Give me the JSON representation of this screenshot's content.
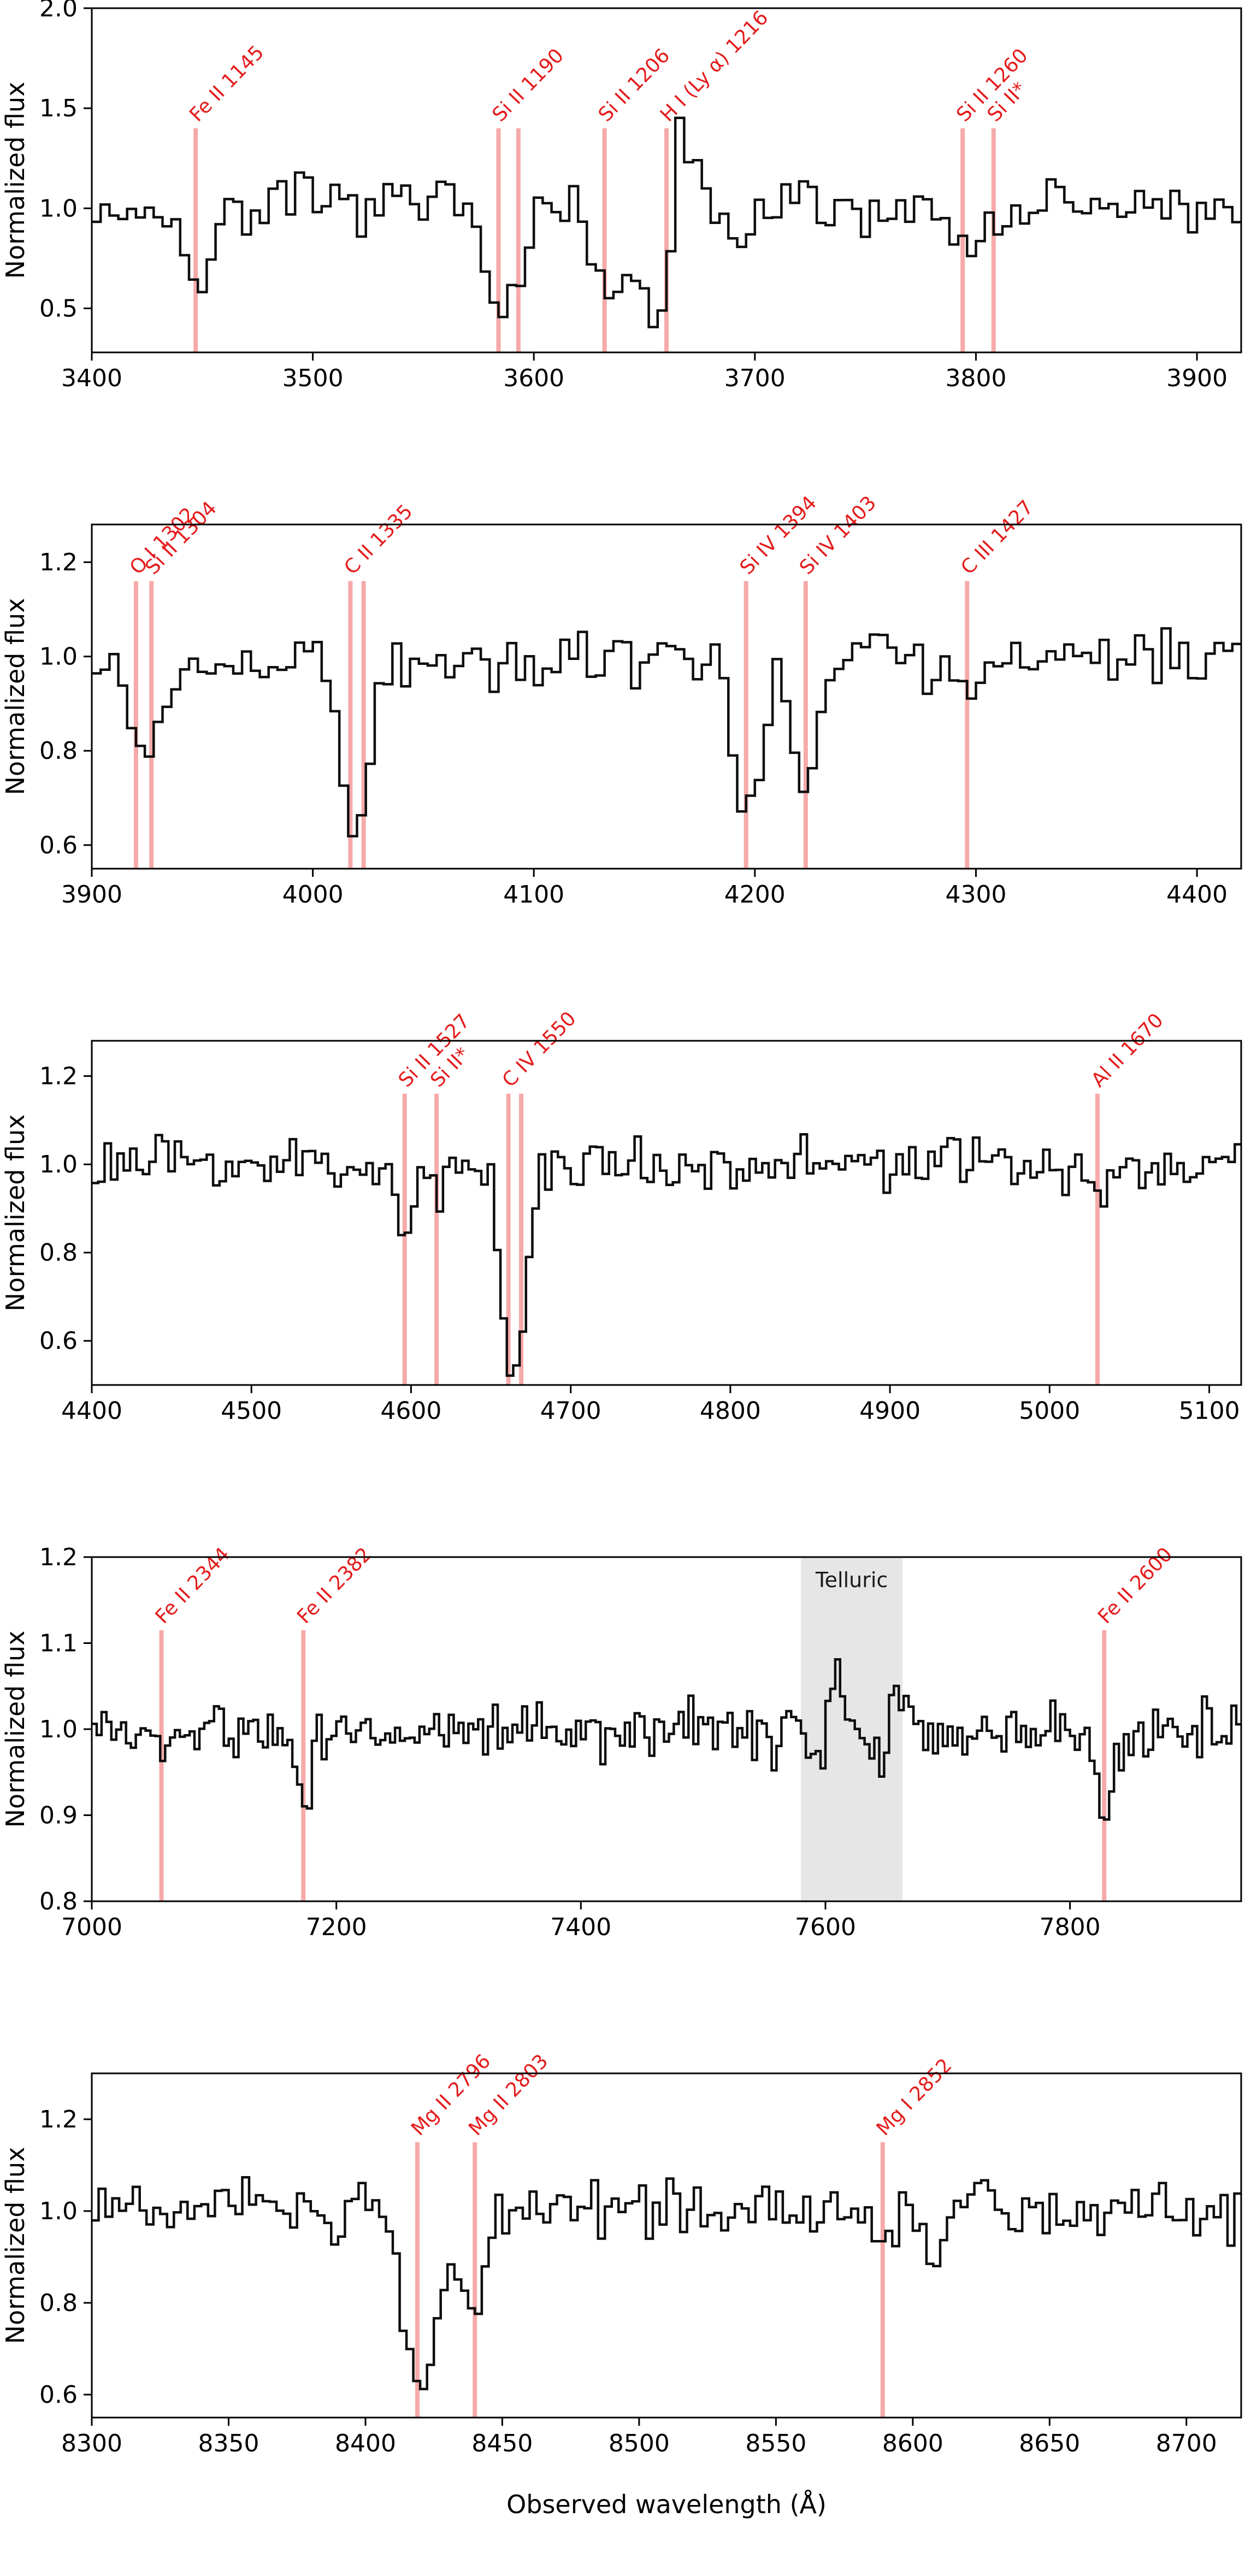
{
  "figure": {
    "xlabel": "Observed wavelength (Å)",
    "ylabel": "Normalized flux",
    "colors": {
      "spectrum": "#0d0d0d",
      "marker_line": "#f6a9a9",
      "label": "#e41b1b",
      "telluric_band": "#e6e6e6",
      "axis": "#000000",
      "background": "#ffffff"
    }
  },
  "chart_data": [
    {
      "type": "line",
      "panel": 1,
      "ylabel": "Normalized flux",
      "xlim": [
        3400,
        3920
      ],
      "ylim": [
        0.28,
        2.0
      ],
      "xticks": [
        {
          "v": 3400,
          "label": "3400"
        },
        {
          "v": 3500,
          "label": "3500"
        },
        {
          "v": 3600,
          "label": "3600"
        },
        {
          "v": 3700,
          "label": "3700"
        },
        {
          "v": 3800,
          "label": "3800"
        },
        {
          "v": 3900,
          "label": "3900"
        }
      ],
      "yticks": [
        {
          "v": 0.5,
          "label": "0.5"
        },
        {
          "v": 1.0,
          "label": "1.0"
        },
        {
          "v": 1.5,
          "label": "1.5"
        },
        {
          "v": 2.0,
          "label": "2.0"
        }
      ],
      "marker_top_flux": 1.4,
      "lines": [
        {
          "label": "Fe II 1145",
          "x": 3447
        },
        {
          "label": "Si II 1190",
          "x": 3584
        },
        {
          "label": "",
          "x": 3593
        },
        {
          "label": "Si II 1206",
          "x": 3632
        },
        {
          "label": "H I (Ly α) 1216",
          "x": 3660
        },
        {
          "label": "Si II 1260",
          "x": 3794
        },
        {
          "label": "Si II*",
          "x": 3808
        }
      ],
      "features": [
        {
          "x": 3447,
          "depth": 0.45,
          "width": 5
        },
        {
          "x": 3584,
          "depth": 0.4,
          "width": 6
        },
        {
          "x": 3593,
          "depth": 0.28,
          "width": 5
        },
        {
          "x": 3632,
          "depth": 0.38,
          "width": 6
        },
        {
          "x": 3641,
          "depth": 0.3,
          "width": 5
        },
        {
          "x": 3656,
          "depth": 0.6,
          "width": 7
        },
        {
          "x": 3666,
          "depth": -0.72,
          "width": 4
        },
        {
          "x": 3692,
          "depth": 0.22,
          "width": 5
        },
        {
          "x": 3794,
          "depth": 0.16,
          "width": 5
        },
        {
          "x": 3808,
          "depth": 0.14,
          "width": 4
        }
      ],
      "noise": 0.075,
      "bin": 4,
      "seed": 7
    },
    {
      "type": "line",
      "panel": 2,
      "ylabel": "Normalized flux",
      "xlim": [
        3900,
        4420
      ],
      "ylim": [
        0.55,
        1.28
      ],
      "xticks": [
        {
          "v": 3900,
          "label": "3900"
        },
        {
          "v": 4000,
          "label": "4000"
        },
        {
          "v": 4100,
          "label": "4100"
        },
        {
          "v": 4200,
          "label": "4200"
        },
        {
          "v": 4300,
          "label": "4300"
        },
        {
          "v": 4400,
          "label": "4400"
        }
      ],
      "yticks": [
        {
          "v": 0.6,
          "label": "0.6"
        },
        {
          "v": 0.8,
          "label": "0.8"
        },
        {
          "v": 1.0,
          "label": "1.0"
        },
        {
          "v": 1.2,
          "label": "1.2"
        }
      ],
      "marker_top_flux": 1.16,
      "lines": [
        {
          "label": "O I 1302",
          "x": 3920
        },
        {
          "label": "Si II 1304",
          "x": 3927
        },
        {
          "label": "C II 1335",
          "x": 4017
        },
        {
          "label": "",
          "x": 4023
        },
        {
          "label": "Si IV 1394",
          "x": 4196
        },
        {
          "label": "Si IV 1403",
          "x": 4223
        },
        {
          "label": "C III 1427",
          "x": 4296
        }
      ],
      "features": [
        {
          "x": 3920,
          "depth": 0.14,
          "width": 5
        },
        {
          "x": 3927,
          "depth": 0.16,
          "width": 5
        },
        {
          "x": 4017,
          "depth": 0.3,
          "width": 5
        },
        {
          "x": 4023,
          "depth": 0.24,
          "width": 4
        },
        {
          "x": 4196,
          "depth": 0.33,
          "width": 6
        },
        {
          "x": 4223,
          "depth": 0.28,
          "width": 6
        },
        {
          "x": 4296,
          "depth": 0.08,
          "width": 5
        }
      ],
      "noise": 0.032,
      "bin": 4,
      "seed": 12
    },
    {
      "type": "line",
      "panel": 3,
      "ylabel": "Normalized flux",
      "xlim": [
        4400,
        5120
      ],
      "ylim": [
        0.5,
        1.28
      ],
      "xticks": [
        {
          "v": 4400,
          "label": "4400"
        },
        {
          "v": 4500,
          "label": "4500"
        },
        {
          "v": 4600,
          "label": "4600"
        },
        {
          "v": 4700,
          "label": "4700"
        },
        {
          "v": 4800,
          "label": "4800"
        },
        {
          "v": 4900,
          "label": "4900"
        },
        {
          "v": 5000,
          "label": "5000"
        },
        {
          "v": 5100,
          "label": "5100"
        }
      ],
      "yticks": [
        {
          "v": 0.6,
          "label": "0.6"
        },
        {
          "v": 0.8,
          "label": "0.8"
        },
        {
          "v": 1.0,
          "label": "1.0"
        },
        {
          "v": 1.2,
          "label": "1.2"
        }
      ],
      "marker_top_flux": 1.16,
      "lines": [
        {
          "label": "Si II 1527",
          "x": 4596
        },
        {
          "label": "Si II*",
          "x": 4616
        },
        {
          "label": "C IV 1550",
          "x": 4661
        },
        {
          "label": "",
          "x": 4669
        },
        {
          "label": "Al II 1670",
          "x": 5030
        }
      ],
      "features": [
        {
          "x": 4596,
          "depth": 0.15,
          "width": 5
        },
        {
          "x": 4616,
          "depth": 0.09,
          "width": 4
        },
        {
          "x": 4661,
          "depth": 0.4,
          "width": 5
        },
        {
          "x": 4669,
          "depth": 0.34,
          "width": 5
        },
        {
          "x": 5030,
          "depth": 0.11,
          "width": 5
        }
      ],
      "noise": 0.03,
      "bin": 4,
      "seed": 23
    },
    {
      "type": "line",
      "panel": 4,
      "ylabel": "Normalized flux",
      "xlim": [
        7000,
        7940
      ],
      "ylim": [
        0.8,
        1.2
      ],
      "xticks": [
        {
          "v": 7000,
          "label": "7000"
        },
        {
          "v": 7200,
          "label": "7200"
        },
        {
          "v": 7400,
          "label": "7400"
        },
        {
          "v": 7600,
          "label": "7600"
        },
        {
          "v": 7800,
          "label": "7800"
        }
      ],
      "yticks": [
        {
          "v": 0.8,
          "label": "0.8"
        },
        {
          "v": 0.9,
          "label": "0.9"
        },
        {
          "v": 1.0,
          "label": "1.0"
        },
        {
          "v": 1.1,
          "label": "1.1"
        },
        {
          "v": 1.2,
          "label": "1.2"
        }
      ],
      "marker_top_flux": 1.115,
      "band": {
        "xmin": 7580,
        "xmax": 7663,
        "label": "Telluric",
        "label_flux": 1.165
      },
      "lines": [
        {
          "label": "Fe II 2344",
          "x": 7057
        },
        {
          "label": "Fe II 2382",
          "x": 7173
        },
        {
          "label": "Fe II 2600",
          "x": 7828
        }
      ],
      "features": [
        {
          "x": 7057,
          "depth": 0.035,
          "width": 6
        },
        {
          "x": 7173,
          "depth": 0.085,
          "width": 6
        },
        {
          "x": 7828,
          "depth": 0.115,
          "width": 6
        },
        {
          "x": 7597,
          "depth": 0.05,
          "width": 3
        },
        {
          "x": 7608,
          "depth": -0.08,
          "width": 3
        },
        {
          "x": 7641,
          "depth": 0.05,
          "width": 4
        }
      ],
      "noisy_regions": [
        {
          "xmin": 7580,
          "xmax": 7663,
          "extra": 0.018
        }
      ],
      "noise": 0.017,
      "bin": 4,
      "seed": 5
    },
    {
      "type": "line",
      "panel": 5,
      "ylabel": "Normalized flux",
      "xlim": [
        8300,
        8720
      ],
      "ylim": [
        0.55,
        1.3
      ],
      "xticks": [
        {
          "v": 8300,
          "label": "8300"
        },
        {
          "v": 8350,
          "label": "8350"
        },
        {
          "v": 8400,
          "label": "8400"
        },
        {
          "v": 8450,
          "label": "8450"
        },
        {
          "v": 8500,
          "label": "8500"
        },
        {
          "v": 8550,
          "label": "8550"
        },
        {
          "v": 8600,
          "label": "8600"
        },
        {
          "v": 8650,
          "label": "8650"
        },
        {
          "v": 8700,
          "label": "8700"
        }
      ],
      "yticks": [
        {
          "v": 0.6,
          "label": "0.6"
        },
        {
          "v": 0.8,
          "label": "0.8"
        },
        {
          "v": 1.0,
          "label": "1.0"
        },
        {
          "v": 1.2,
          "label": "1.2"
        }
      ],
      "marker_top_flux": 1.15,
      "lines": [
        {
          "label": "Mg II 2796",
          "x": 8419
        },
        {
          "label": "Mg II 2803",
          "x": 8440
        },
        {
          "label": "Mg I 2852",
          "x": 8589
        }
      ],
      "features": [
        {
          "x": 8419,
          "depth": 0.36,
          "width": 5
        },
        {
          "x": 8426,
          "depth": 0.12,
          "width": 8
        },
        {
          "x": 8440,
          "depth": 0.18,
          "width": 4
        },
        {
          "x": 8589,
          "depth": 0.06,
          "width": 4
        },
        {
          "x": 8607,
          "depth": 0.12,
          "width": 3
        }
      ],
      "noise": 0.033,
      "bin": 2.5,
      "seed": 9
    }
  ]
}
